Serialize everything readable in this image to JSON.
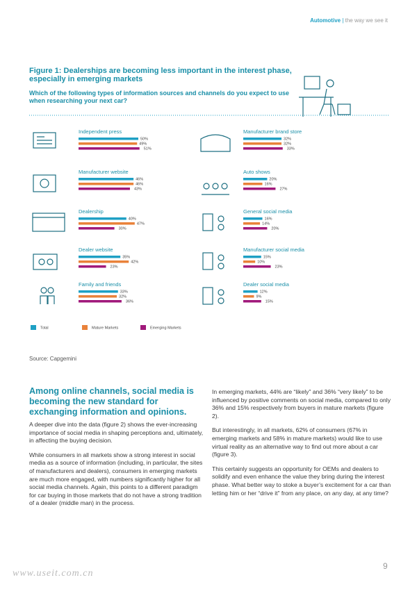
{
  "header": {
    "section": "Automotive",
    "tagline": "the way we see it"
  },
  "chart_data": {
    "type": "bar",
    "title": "Figure 1: Dealerships are becoming less important in the interest phase, especially in emerging markets",
    "subtitle": "Which of the following types of information sources and channels do you expect to use when researching your next car?",
    "categories": [
      "Independent press",
      "Manufacturer website",
      "Dealership",
      "Dealer website",
      "Family and friends",
      "Manufacturer brand store",
      "Auto shows",
      "General social media",
      "Manufacturer social media",
      "Dealer social media"
    ],
    "series": [
      {
        "name": "Total",
        "color": "#1fa0c4",
        "values": [
          50,
          46,
          40,
          35,
          33,
          32,
          20,
          16,
          15,
          12
        ],
        "value_labels": [
          "50%",
          "46%",
          "40%",
          "35%",
          "33%",
          "32%",
          "20%",
          "16%",
          "15%",
          "12%"
        ]
      },
      {
        "name": "Mature Markets",
        "color": "#e9823a",
        "values": [
          49,
          46,
          47,
          42,
          32,
          32,
          16,
          14,
          10,
          9
        ],
        "value_labels": [
          "49%",
          "46%",
          "47%",
          "42%",
          "32%",
          "32%",
          "16%",
          "14%",
          "10%",
          "9%"
        ]
      },
      {
        "name": "Emerging Markets",
        "color": "#a0197b",
        "values": [
          51,
          43,
          30,
          23,
          36,
          33,
          27,
          20,
          23,
          15
        ],
        "value_labels": [
          "51%",
          "43%",
          "30%",
          "23%",
          "36%",
          "33%",
          "27%",
          "20%",
          "23%",
          "15%"
        ]
      }
    ],
    "source": "Source: Capgemini"
  },
  "document": {
    "heading": "Among online channels, social media is becoming the new standard for exchanging information and opinions.",
    "left_paragraphs": [
      "A deeper dive into the data (figure 2) shows the ever-increasing importance of social media in shaping perceptions and, ultimately, in affecting the buying decision.",
      "While consumers in all markets show a strong interest in social media as a source of information (including, in particular, the sites of manufacturers and dealers), consumers in emerging markets are much more engaged, with numbers significantly higher for all social media channels. Again, this points to a different paradigm for car buying in those markets that do not have a strong tradition of a dealer (middle man) in the process."
    ],
    "right_paragraphs": [
      "In emerging markets, 44% are “likely” and 36% “very likely” to be influenced by positive comments on social media, compared to only 36% and 15% respectively from buyers in mature markets (figure 2).",
      "But interestingly, in all markets, 62% of consumers (67% in emerging markets and 58% in mature markets) would like to use virtual reality as an alternative way to find out more about a car (figure 3).",
      "This certainly suggests an opportunity for OEMs and dealers to solidify and even enhance the value they bring during the interest phase. What better way to stoke a buyer’s excitement for a car than letting him or her “drive it” from any place, on any day, at any time?"
    ],
    "page_number": "9",
    "watermark": "www.useit.com.cn"
  }
}
